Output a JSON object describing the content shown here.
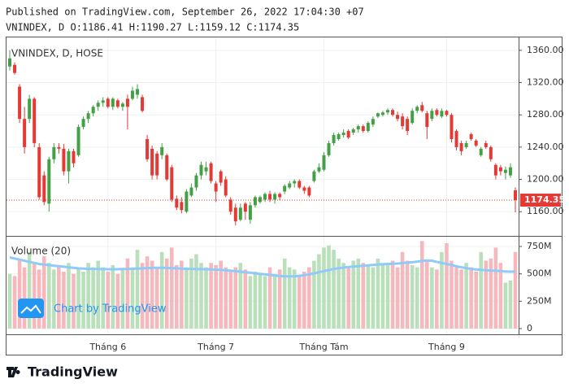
{
  "header": {
    "published": "Published on TradingView.com, September 26, 2022 17:04:30 +07",
    "symbol_line": "VNINDEX, D O:1186.41 H:1190.27 L:1159.12 C:1174.35"
  },
  "watermark": "Chart by TradingView",
  "footer": {
    "brand": "TradingView"
  },
  "chart_data": {
    "type": "candlestick",
    "legend_title": "VNINDEX, D, HOSE",
    "categories": [
      null,
      null,
      null,
      null,
      null,
      null,
      null,
      null,
      null,
      null,
      null,
      null,
      null,
      null,
      null,
      null,
      null,
      null,
      null,
      null,
      "Tháng 6",
      null,
      null,
      null,
      null,
      null,
      null,
      null,
      null,
      null,
      null,
      null,
      null,
      null,
      null,
      null,
      null,
      null,
      null,
      null,
      null,
      null,
      "Tháng 7",
      null,
      null,
      null,
      null,
      null,
      null,
      null,
      null,
      null,
      null,
      null,
      null,
      null,
      null,
      null,
      null,
      null,
      null,
      null,
      null,
      null,
      "Tháng Tám",
      null,
      null,
      null,
      null,
      null,
      null,
      null,
      null,
      null,
      null,
      null,
      null,
      null,
      null,
      null,
      null,
      null,
      null,
      null,
      null,
      null,
      null,
      null,
      null,
      "Tháng 9",
      null,
      null,
      null,
      null,
      null,
      null,
      null,
      null,
      null,
      null,
      null,
      null,
      null,
      null
    ],
    "open": [
      1340,
      1342,
      1315,
      1275,
      1275,
      1300,
      1240,
      1205,
      1170,
      1225,
      1240,
      1238,
      1210,
      1235,
      1230,
      1265,
      1275,
      1282,
      1290,
      1295,
      1300,
      1290,
      1298,
      1290,
      1300,
      1300,
      1305,
      1302,
      1250,
      1238,
      1232,
      1230,
      1230,
      1215,
      1176,
      1172,
      1160,
      1180,
      1190,
      1205,
      1210,
      1220,
      1195,
      1210,
      1200,
      1175,
      1165,
      1150,
      1170,
      1150,
      1168,
      1172,
      1175,
      1182,
      1175,
      1182,
      1185,
      1190,
      1195,
      1198,
      1190,
      1190,
      1198,
      1210,
      1212,
      1230,
      1245,
      1250,
      1255,
      1260,
      1258,
      1262,
      1266,
      1260,
      1268,
      1278,
      1280,
      1283,
      1286,
      1280,
      1278,
      1275,
      1270,
      1285,
      1292,
      1282,
      1275,
      1286,
      1278,
      1285,
      1280,
      1260,
      1245,
      1240,
      1256,
      1248,
      1230,
      1245,
      1240,
      1218,
      1215,
      1208,
      1205,
      1186.41
    ],
    "high": [
      1360,
      1345,
      1318,
      1290,
      1305,
      1302,
      1245,
      1210,
      1228,
      1245,
      1245,
      1244,
      1238,
      1238,
      1268,
      1278,
      1285,
      1292,
      1298,
      1302,
      1302,
      1302,
      1300,
      1296,
      1305,
      1315,
      1318,
      1305,
      1255,
      1242,
      1235,
      1245,
      1232,
      1218,
      1180,
      1178,
      1188,
      1195,
      1208,
      1222,
      1222,
      1222,
      1198,
      1212,
      1204,
      1178,
      1170,
      1170,
      1172,
      1172,
      1180,
      1180,
      1184,
      1186,
      1184,
      1184,
      1194,
      1198,
      1200,
      1200,
      1192,
      1192,
      1212,
      1220,
      1234,
      1248,
      1258,
      1258,
      1262,
      1262,
      1264,
      1268,
      1268,
      1272,
      1278,
      1283,
      1285,
      1288,
      1288,
      1284,
      1282,
      1278,
      1288,
      1292,
      1296,
      1285,
      1288,
      1288,
      1288,
      1286,
      1282,
      1262,
      1248,
      1248,
      1258,
      1250,
      1240,
      1248,
      1242,
      1220,
      1218,
      1216,
      1220,
      1190.27
    ],
    "low": [
      1335,
      1330,
      1270,
      1232,
      1270,
      1240,
      1175,
      1168,
      1160,
      1220,
      1232,
      1205,
      1195,
      1215,
      1228,
      1262,
      1270,
      1278,
      1285,
      1290,
      1288,
      1286,
      1288,
      1285,
      1262,
      1298,
      1300,
      1283,
      1222,
      1200,
      1200,
      1225,
      1198,
      1172,
      1162,
      1158,
      1158,
      1178,
      1186,
      1200,
      1205,
      1195,
      1172,
      1192,
      1178,
      1156,
      1143,
      1148,
      1150,
      1145,
      1165,
      1170,
      1172,
      1172,
      1170,
      1174,
      1182,
      1188,
      1190,
      1188,
      1182,
      1178,
      1196,
      1208,
      1210,
      1228,
      1242,
      1248,
      1252,
      1250,
      1255,
      1258,
      1258,
      1258,
      1265,
      1276,
      1278,
      1280,
      1278,
      1272,
      1262,
      1255,
      1268,
      1282,
      1283,
      1250,
      1272,
      1278,
      1276,
      1278,
      1246,
      1236,
      1230,
      1238,
      1248,
      1240,
      1228,
      1238,
      1222,
      1200,
      1205,
      1200,
      1202,
      1159.12
    ],
    "close": [
      1350,
      1332,
      1275,
      1240,
      1300,
      1245,
      1178,
      1172,
      1225,
      1240,
      1238,
      1210,
      1235,
      1220,
      1265,
      1275,
      1282,
      1290,
      1295,
      1298,
      1290,
      1300,
      1290,
      1294,
      1290,
      1310,
      1312,
      1285,
      1225,
      1205,
      1205,
      1240,
      1200,
      1175,
      1165,
      1162,
      1185,
      1190,
      1205,
      1218,
      1215,
      1198,
      1185,
      1196,
      1180,
      1160,
      1148,
      1165,
      1160,
      1168,
      1178,
      1178,
      1182,
      1175,
      1182,
      1178,
      1192,
      1195,
      1198,
      1190,
      1186,
      1180,
      1210,
      1215,
      1230,
      1245,
      1255,
      1256,
      1258,
      1252,
      1262,
      1266,
      1260,
      1270,
      1275,
      1282,
      1283,
      1286,
      1280,
      1275,
      1266,
      1260,
      1285,
      1290,
      1285,
      1265,
      1285,
      1280,
      1285,
      1280,
      1250,
      1240,
      1235,
      1245,
      1250,
      1242,
      1238,
      1240,
      1225,
      1205,
      1210,
      1212,
      1215,
      1174.35
    ],
    "up_color": "#43a047",
    "down_color": "#e53935",
    "last_price_color": "#e53935",
    "ylim": [
      1375,
      1130
    ],
    "yticks": [
      {
        "value": 1360,
        "label": "1360.00"
      },
      {
        "value": 1320,
        "label": "1320.00"
      },
      {
        "value": 1280,
        "label": "1280.00"
      },
      {
        "value": 1240,
        "label": "1240.00"
      },
      {
        "value": 1200,
        "label": "1200.00"
      },
      {
        "value": 1160,
        "label": "1160.00"
      }
    ],
    "grid": true,
    "volume": {
      "title": "Volume (20)",
      "values": [
        500,
        480,
        620,
        560,
        700,
        600,
        540,
        660,
        600,
        540,
        580,
        520,
        600,
        500,
        560,
        520,
        600,
        560,
        620,
        560,
        520,
        580,
        500,
        540,
        640,
        560,
        720,
        600,
        660,
        620,
        560,
        700,
        640,
        740,
        580,
        620,
        560,
        640,
        680,
        600,
        560,
        600,
        580,
        620,
        560,
        520,
        560,
        600,
        540,
        480,
        520,
        500,
        480,
        560,
        500,
        540,
        640,
        560,
        540,
        480,
        520,
        560,
        620,
        680,
        740,
        760,
        720,
        640,
        600,
        560,
        620,
        640,
        600,
        580,
        560,
        640,
        580,
        600,
        620,
        560,
        700,
        620,
        580,
        560,
        800,
        620,
        560,
        540,
        700,
        780,
        620,
        560,
        540,
        600,
        560,
        520,
        700,
        620,
        640,
        740,
        600,
        420,
        440,
        700
      ],
      "ma": {
        "color": "#90caf9",
        "values": [
          650,
          640,
          630,
          620,
          610,
          600,
          590,
          585,
          580,
          575,
          570,
          565,
          560,
          555,
          550,
          548,
          546,
          545,
          544,
          543,
          542,
          542,
          543,
          544,
          545,
          546,
          548,
          550,
          552,
          554,
          556,
          555,
          554,
          552,
          550,
          548,
          546,
          545,
          544,
          543,
          542,
          540,
          538,
          536,
          532,
          528,
          524,
          520,
          515,
          510,
          505,
          500,
          495,
          490,
          485,
          480,
          478,
          476,
          478,
          482,
          488,
          495,
          505,
          515,
          525,
          535,
          545,
          552,
          558,
          562,
          566,
          570,
          574,
          578,
          582,
          585,
          588,
          590,
          592,
          594,
          598,
          602,
          606,
          612,
          618,
          622,
          620,
          610,
          600,
          590,
          580,
          570,
          560,
          552,
          545,
          540,
          536,
          533,
          530,
          528,
          525,
          522,
          520,
          522
        ]
      },
      "up_color": "#b9e0bb",
      "down_color": "#f6b8bc",
      "ylim": [
        -45,
        832
      ],
      "yticks": [
        {
          "value": 750,
          "label": "750M"
        },
        {
          "value": 500,
          "label": "500M"
        },
        {
          "value": 250,
          "label": "250M"
        },
        0
      ]
    }
  }
}
